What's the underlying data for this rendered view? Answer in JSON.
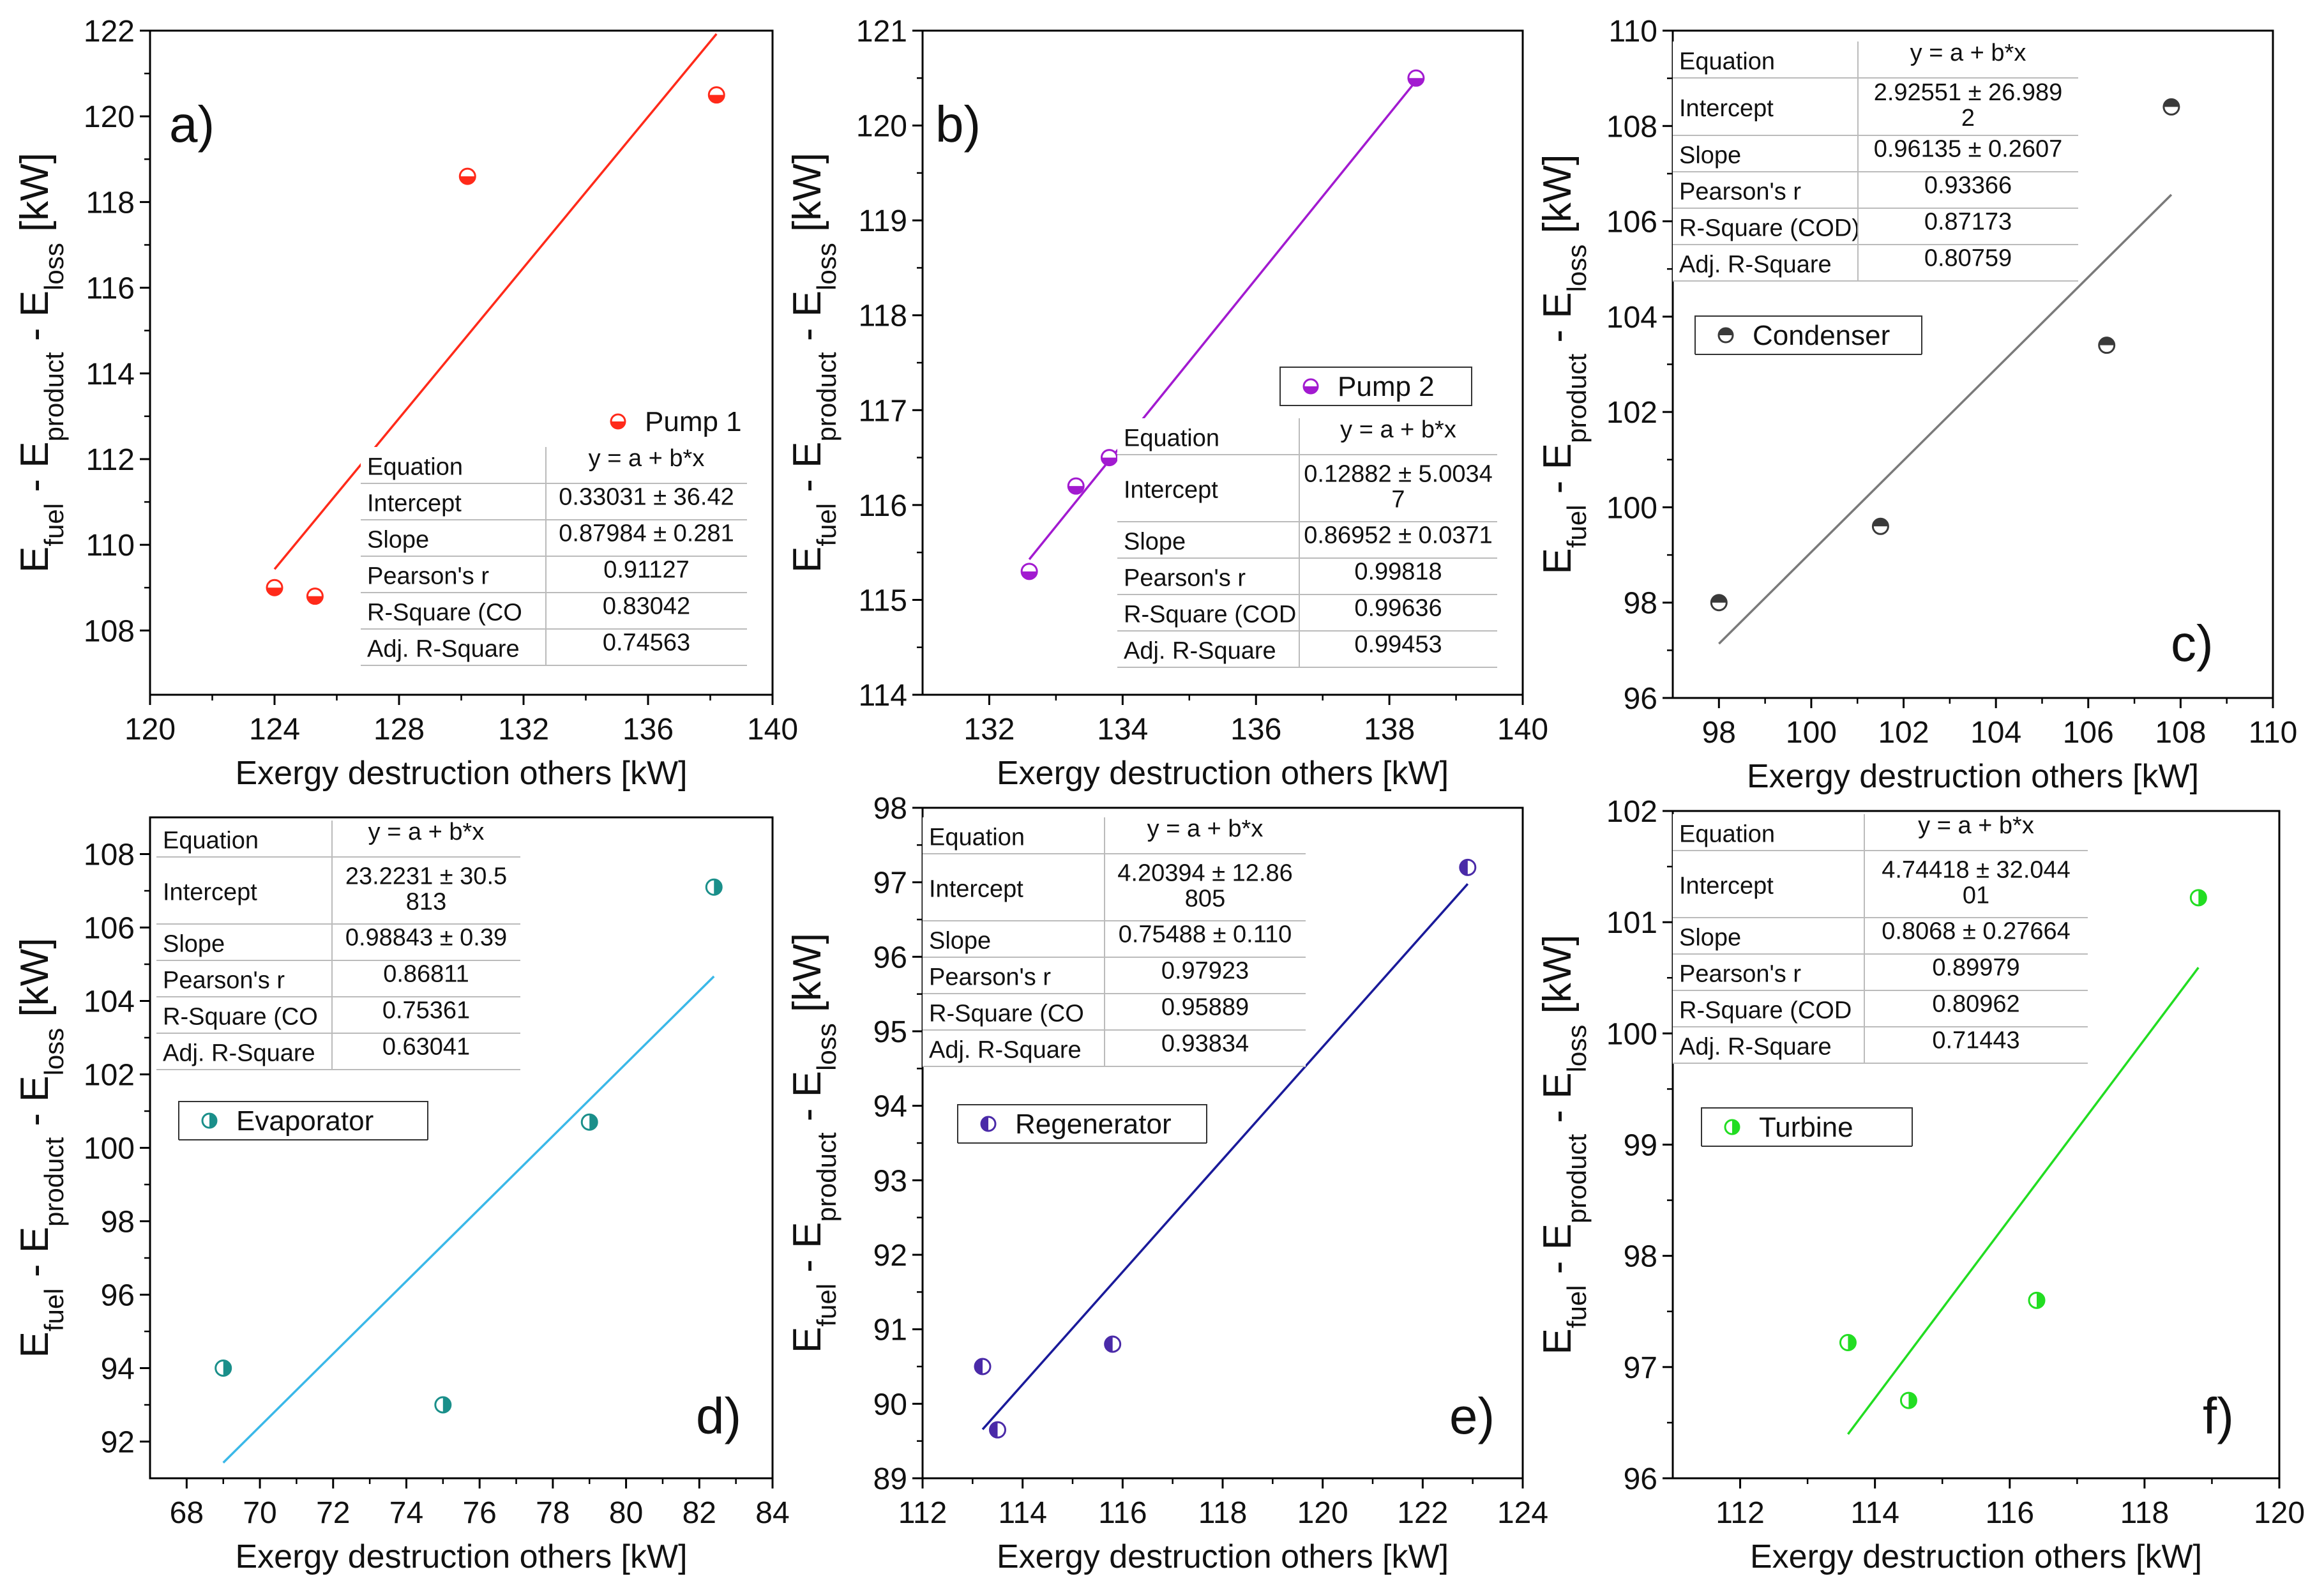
{
  "chart_data": [
    {
      "type": "scatter",
      "panel_label": "a)",
      "ylabel_parts": [
        "E",
        "fuel",
        " - E",
        "product",
        " - E",
        "loss",
        " [kW]"
      ],
      "xlabel": "Exergy destruction others [kW]",
      "xlim": [
        120,
        140
      ],
      "ylim": [
        106.5,
        122
      ],
      "xticks": [
        "120",
        "124",
        "128",
        "132",
        "136",
        "140"
      ],
      "yticks": [
        "108",
        "110",
        "112",
        "114",
        "116",
        "118",
        "120",
        "122"
      ],
      "series": [
        {
          "name": "Pump 1",
          "color": "#ff2a1a",
          "points": [
            [
              124.0,
              109.0
            ],
            [
              125.3,
              108.8
            ],
            [
              130.2,
              118.6
            ],
            [
              138.2,
              120.5
            ]
          ],
          "fit": {
            "x": [
              124.0,
              138.2
            ],
            "intercept": 0.33031,
            "slope": 0.87984
          }
        }
      ],
      "legend": {
        "label": "Pump 1",
        "placement": "center-right"
      },
      "stats_table": {
        "header": [
          "Equation",
          "y = a + b*x"
        ],
        "rows": [
          [
            "Intercept",
            "0.33031 ± 36.42"
          ],
          [
            "Slope",
            "0.87984 ± 0.281"
          ],
          [
            "Pearson's r",
            "0.91127"
          ],
          [
            "R-Square (CO",
            "0.83042"
          ],
          [
            "Adj. R-Square",
            "0.74563"
          ]
        ]
      }
    },
    {
      "type": "scatter",
      "panel_label": "b)",
      "ylabel_parts": [
        "E",
        "fuel",
        " - E",
        "product",
        " - E",
        "loss",
        " [kW]"
      ],
      "xlabel": "Exergy destruction others [kW]",
      "xlim": [
        131,
        140
      ],
      "ylim": [
        114,
        121
      ],
      "xticks": [
        "132",
        "134",
        "136",
        "138",
        "140"
      ],
      "yticks": [
        "114",
        "115",
        "116",
        "117",
        "118",
        "119",
        "120",
        "121"
      ],
      "series": [
        {
          "name": "Pump 2",
          "color": "#a21ad0",
          "points": [
            [
              132.6,
              115.3
            ],
            [
              133.3,
              116.2
            ],
            [
              133.8,
              116.5
            ],
            [
              138.4,
              120.5
            ]
          ],
          "fit": {
            "x": [
              132.6,
              138.4
            ],
            "intercept": 0.12882,
            "slope": 0.86952
          }
        }
      ],
      "legend": {
        "label": "Pump 2",
        "placement": "center-right"
      },
      "stats_table": {
        "header": [
          "Equation",
          "y = a + b*x"
        ],
        "rows": [
          [
            "Intercept",
            "0.12882 ± 5.0034\n7"
          ],
          [
            "Slope",
            "0.86952 ± 0.0371"
          ],
          [
            "Pearson's r",
            "0.99818"
          ],
          [
            "R-Square (COD",
            "0.99636"
          ],
          [
            "Adj. R-Square",
            "0.99453"
          ]
        ]
      }
    },
    {
      "type": "scatter",
      "panel_label": "c)",
      "ylabel_parts": [
        "E",
        "fuel",
        " - E",
        "product",
        " - E",
        "loss",
        " [kW]"
      ],
      "xlabel": "Exergy destruction others [kW]",
      "xlim": [
        97,
        110
      ],
      "ylim": [
        96,
        110
      ],
      "xticks": [
        "98",
        "100",
        "102",
        "104",
        "106",
        "108",
        "110"
      ],
      "yticks": [
        "96",
        "98",
        "100",
        "102",
        "104",
        "106",
        "108",
        "110"
      ],
      "series": [
        {
          "name": "Condenser",
          "color": "#3a3a3a",
          "points": [
            [
              98.0,
              98.0
            ],
            [
              101.5,
              99.6
            ],
            [
              106.4,
              103.4
            ],
            [
              107.8,
              108.4
            ]
          ],
          "fit": {
            "x": [
              98.0,
              107.8
            ],
            "intercept": 2.92551,
            "slope": 0.96135
          }
        }
      ],
      "legend": {
        "label": "Condenser",
        "placement": "top-left"
      },
      "stats_table": {
        "header": [
          "Equation",
          "y = a + b*x"
        ],
        "rows": [
          [
            "Intercept",
            "2.92551 ± 26.989\n2"
          ],
          [
            "Slope",
            "0.96135 ± 0.2607"
          ],
          [
            "Pearson's r",
            "0.93366"
          ],
          [
            "R-Square (COD)",
            "0.87173"
          ],
          [
            "Adj. R-Square",
            "0.80759"
          ]
        ]
      }
    },
    {
      "type": "scatter",
      "panel_label": "d)",
      "ylabel_parts": [
        "E",
        "fuel",
        " - E",
        "product",
        " - E",
        "loss",
        " [kW]"
      ],
      "xlabel": "Exergy destruction others [kW]",
      "xlim": [
        67,
        84
      ],
      "ylim": [
        91,
        109
      ],
      "xticks": [
        "68",
        "70",
        "72",
        "74",
        "76",
        "78",
        "80",
        "82",
        "84"
      ],
      "yticks": [
        "92",
        "94",
        "96",
        "98",
        "100",
        "102",
        "104",
        "106",
        "108"
      ],
      "series": [
        {
          "name": "Evaporator",
          "color": "#1a8f8a",
          "points": [
            [
              69.0,
              94.0
            ],
            [
              75.0,
              93.0
            ],
            [
              79.0,
              100.7
            ],
            [
              82.4,
              107.1
            ]
          ],
          "fit": {
            "x": [
              69.0,
              82.4
            ],
            "intercept": 23.2231,
            "slope": 0.98843,
            "color": "#3ab8e8"
          }
        }
      ],
      "legend": {
        "label": "Evaporator",
        "placement": "top-left"
      },
      "stats_table": {
        "header": [
          "Equation",
          "y = a + b*x"
        ],
        "rows": [
          [
            "Intercept",
            "23.2231 ± 30.5\n813"
          ],
          [
            "Slope",
            "0.98843 ± 0.39"
          ],
          [
            "Pearson's r",
            "0.86811"
          ],
          [
            "R-Square (CO",
            "0.75361"
          ],
          [
            "Adj. R-Square",
            "0.63041"
          ]
        ]
      }
    },
    {
      "type": "scatter",
      "panel_label": "e)",
      "ylabel_parts": [
        "E",
        "fuel",
        " - E",
        "product",
        " - E",
        "loss",
        " [kW]"
      ],
      "xlabel": "Exergy destruction others [kW]",
      "xlim": [
        112,
        124
      ],
      "ylim": [
        89,
        98
      ],
      "xticks": [
        "112",
        "114",
        "116",
        "118",
        "120",
        "122",
        "124"
      ],
      "yticks": [
        "89",
        "90",
        "91",
        "92",
        "93",
        "94",
        "95",
        "96",
        "97",
        "98"
      ],
      "series": [
        {
          "name": "Regenerator",
          "color": "#4a2aa8",
          "points": [
            [
              113.2,
              90.5
            ],
            [
              113.5,
              89.65
            ],
            [
              115.8,
              90.8
            ],
            [
              122.9,
              97.2
            ]
          ],
          "fit": {
            "x": [
              113.2,
              122.9
            ],
            "intercept": 4.20394,
            "slope": 0.75488,
            "color": "#1a1a9a"
          }
        }
      ],
      "legend": {
        "label": "Regenerator",
        "placement": "top-left"
      },
      "stats_table": {
        "header": [
          "Equation",
          "y = a + b*x"
        ],
        "rows": [
          [
            "Intercept",
            "4.20394 ± 12.86\n805"
          ],
          [
            "Slope",
            "0.75488 ± 0.110"
          ],
          [
            "Pearson's r",
            "0.97923"
          ],
          [
            "R-Square (CO",
            "0.95889"
          ],
          [
            "Adj. R-Square",
            "0.93834"
          ]
        ]
      }
    },
    {
      "type": "scatter",
      "panel_label": "f)",
      "ylabel_parts": [
        "E",
        "fuel",
        " - E",
        "product",
        " - E",
        "loss",
        " [kW]"
      ],
      "xlabel": "Exergy destruction others [kW]",
      "xlim": [
        111,
        120
      ],
      "ylim": [
        96,
        102
      ],
      "xticks": [
        "112",
        "114",
        "116",
        "118",
        "120"
      ],
      "yticks": [
        "96",
        "97",
        "98",
        "99",
        "100",
        "101",
        "102"
      ],
      "series": [
        {
          "name": "Turbine",
          "color": "#22dd22",
          "points": [
            [
              113.6,
              97.22
            ],
            [
              114.5,
              96.7
            ],
            [
              116.4,
              97.6
            ],
            [
              118.8,
              101.22
            ]
          ],
          "fit": {
            "x": [
              113.6,
              118.8
            ],
            "intercept": 4.74418,
            "slope": 0.8068
          }
        }
      ],
      "legend": {
        "label": "Turbine",
        "placement": "top-left"
      },
      "stats_table": {
        "header": [
          "Equation",
          "y = a + b*x"
        ],
        "rows": [
          [
            "Intercept",
            "4.74418 ± 32.044\n01"
          ],
          [
            "Slope",
            "0.8068 ± 0.27664"
          ],
          [
            "Pearson's r",
            "0.89979"
          ],
          [
            "R-Square (COD",
            "0.80962"
          ],
          [
            "Adj. R-Square",
            "0.71443"
          ]
        ]
      }
    }
  ]
}
